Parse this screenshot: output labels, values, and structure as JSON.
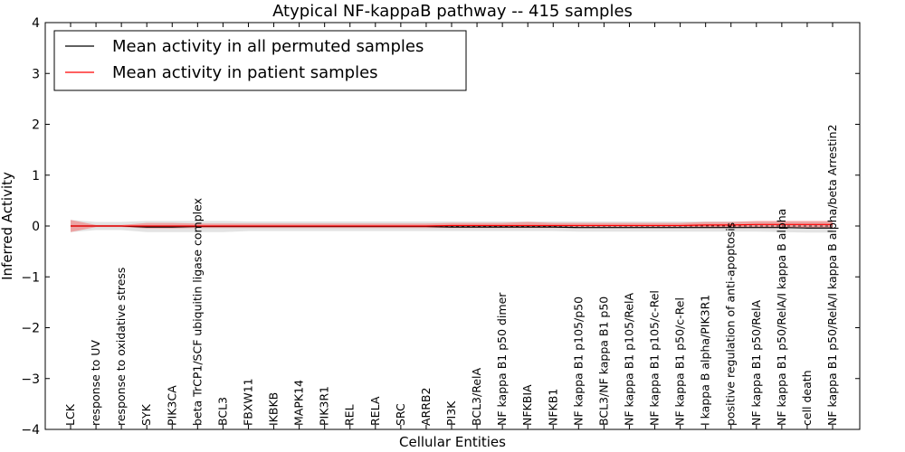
{
  "chart_data": {
    "type": "line",
    "title": "Atypical NF-kappaB pathway -- 415 samples",
    "xlabel": "Cellular Entities",
    "ylabel": "Inferred Activity",
    "ylim": [
      -4,
      4
    ],
    "yticks": [
      "4",
      "3",
      "2",
      "1",
      "0",
      "−1",
      "−2",
      "−3",
      "−4"
    ],
    "ytick_values": [
      4,
      3,
      2,
      1,
      0,
      -1,
      -2,
      -3,
      -4
    ],
    "grid": false,
    "legend_position": "top-left",
    "categories": [
      "LCK",
      "response to UV",
      "response to oxidative stress",
      "SYK",
      "PIK3CA",
      "beta TrCP1/SCF ubiquitin ligase complex",
      "BCL3",
      "FBXW11",
      "IKBKB",
      "MAPK14",
      "PIK3R1",
      "REL",
      "RELA",
      "SRC",
      "ARRB2",
      "PI3K",
      "BCL3/RelA",
      "NF kappa B1 p50 dimer",
      "NFKBIA",
      "NFKB1",
      "NF kappa B1 p105/p50",
      "BCL3/NF kappa B1 p50",
      "NF kappa B1 p105/RelA",
      "NF kappa B1 p105/c-Rel",
      "NF kappa B1 p50/c-Rel",
      "I kappa B alpha/PIK3R1",
      "positive regulation of anti-apoptosis",
      "NF kappa B1 p50/RelA",
      "NF kappa B1 p50/RelA/I kappa B alpha",
      "cell death",
      "NF kappa B1 p50/RelA/I kappa B alpha/beta Arrestin2"
    ],
    "series": [
      {
        "name": "Mean activity in all permuted samples",
        "color": "#000000",
        "values": [
          0,
          0,
          0,
          -0.02,
          -0.02,
          -0.01,
          -0.01,
          -0.01,
          -0.01,
          -0.01,
          -0.01,
          -0.01,
          -0.01,
          -0.01,
          -0.01,
          -0.02,
          -0.02,
          -0.02,
          -0.02,
          -0.02,
          -0.03,
          -0.03,
          -0.03,
          -0.03,
          -0.03,
          -0.03,
          -0.03,
          -0.03,
          -0.03,
          -0.04,
          -0.04
        ],
        "band_lower": [
          -0.12,
          -0.08,
          -0.08,
          -0.12,
          -0.12,
          -0.12,
          -0.12,
          -0.1,
          -0.1,
          -0.1,
          -0.1,
          -0.1,
          -0.1,
          -0.1,
          -0.1,
          -0.1,
          -0.1,
          -0.1,
          -0.1,
          -0.1,
          -0.11,
          -0.11,
          -0.11,
          -0.11,
          -0.11,
          -0.11,
          -0.11,
          -0.11,
          -0.12,
          -0.13,
          -0.13
        ],
        "band_upper": [
          0.12,
          0.08,
          0.08,
          0.1,
          0.1,
          0.1,
          0.1,
          0.09,
          0.09,
          0.09,
          0.09,
          0.09,
          0.09,
          0.09,
          0.09,
          0.09,
          0.09,
          0.09,
          0.09,
          0.09,
          0.09,
          0.09,
          0.09,
          0.09,
          0.09,
          0.09,
          0.09,
          0.09,
          0.09,
          0.09,
          0.09
        ]
      },
      {
        "name": "Mean activity in patient samples",
        "color": "#ff0000",
        "values": [
          0,
          0,
          0,
          0,
          0,
          0,
          0,
          0,
          0,
          0,
          0,
          0,
          0,
          0,
          0,
          0.01,
          0.01,
          0.01,
          0.01,
          0.01,
          0.01,
          0.01,
          0.01,
          0.01,
          0.01,
          0.02,
          0.02,
          0.03,
          0.03,
          0.03,
          0.03
        ],
        "band_lower": [
          -0.12,
          -0.02,
          -0.02,
          -0.05,
          -0.05,
          -0.04,
          -0.04,
          -0.04,
          -0.04,
          -0.04,
          -0.04,
          -0.04,
          -0.04,
          -0.04,
          -0.04,
          -0.04,
          -0.04,
          -0.04,
          -0.04,
          -0.04,
          -0.04,
          -0.04,
          -0.04,
          -0.04,
          -0.04,
          -0.04,
          -0.04,
          -0.04,
          -0.04,
          -0.04,
          -0.04
        ],
        "band_upper": [
          0.12,
          0.02,
          0.02,
          0.06,
          0.06,
          0.05,
          0.05,
          0.05,
          0.05,
          0.05,
          0.05,
          0.05,
          0.05,
          0.05,
          0.05,
          0.06,
          0.06,
          0.06,
          0.08,
          0.06,
          0.06,
          0.06,
          0.06,
          0.06,
          0.06,
          0.08,
          0.08,
          0.1,
          0.1,
          0.1,
          0.1
        ]
      }
    ]
  }
}
